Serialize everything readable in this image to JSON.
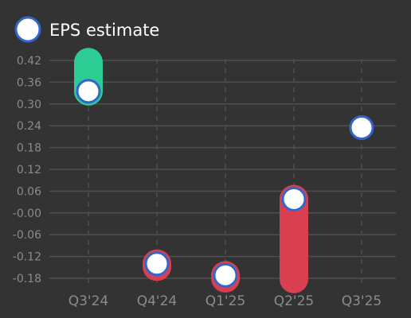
{
  "colors": {
    "background": "#333333",
    "grid": "#4f4f4f",
    "tick_text": "#8b8b8b",
    "beat": "#2ecc95",
    "miss": "#d9404f",
    "marker_fill": "#ffffff",
    "marker_stroke": "#3366cc"
  },
  "chart_data": {
    "type": "scatter",
    "legend": {
      "placement": "top-left",
      "items": [
        {
          "label": "EPS estimate",
          "icon": "circle-marker"
        }
      ]
    },
    "categories": [
      "Q3'24",
      "Q4'24",
      "Q1'25",
      "Q2'25",
      "Q3'25"
    ],
    "y_ticks": [
      "0.42",
      "0.36",
      "0.30",
      "0.24",
      "0.18",
      "0.12",
      "0.06",
      "-0.00",
      "-0.06",
      "-0.12",
      "-0.18"
    ],
    "ylim": [
      -0.19,
      0.43
    ],
    "grid": true,
    "series": [
      {
        "name": "EPS estimate",
        "values": [
          0.335,
          -0.14,
          -0.172,
          0.038,
          0.235
        ]
      }
    ],
    "actual_eps": [
      0.415,
      -0.148,
      -0.18,
      -0.182,
      null
    ]
  }
}
